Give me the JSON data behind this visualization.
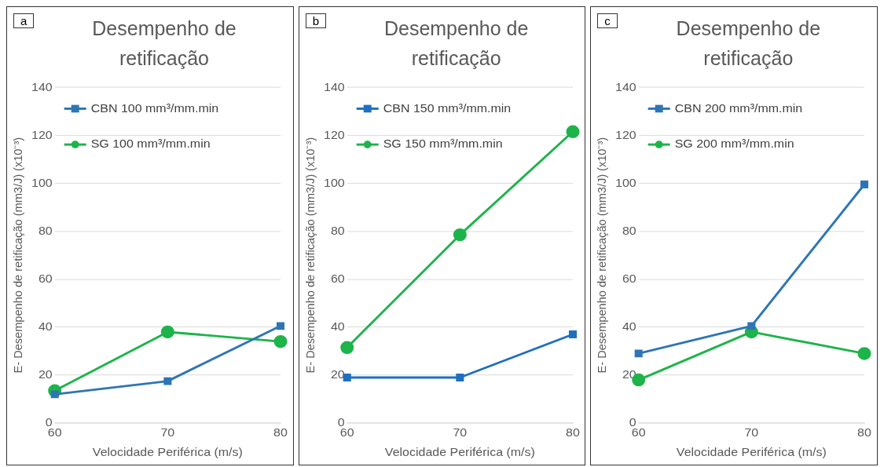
{
  "chart_data": [
    {
      "type": "line",
      "title": "Desempenho de retificação",
      "annotations": [
        "a"
      ],
      "xlabel": "Velocidade Periférica (m/s)",
      "ylabel": "E- Desempenho de retificação (mm3/J) (x10⁻³)",
      "x": [
        60,
        70,
        80
      ],
      "xlim": [
        60,
        80
      ],
      "xticks": [
        60,
        70,
        80
      ],
      "ylim": [
        0,
        140
      ],
      "yticks": [
        0,
        20,
        40,
        60,
        80,
        100,
        120,
        140
      ],
      "grid": "y",
      "legend": "top left",
      "series": [
        {
          "name": "CBN 100 mm³/mm.min",
          "color": "#2e75b6",
          "marker": "square",
          "values": [
            12,
            17.5,
            40.5
          ]
        },
        {
          "name": "SG 100 mm³/mm.min",
          "color": "#1db44a",
          "marker": "circle",
          "values": [
            13.5,
            38,
            34
          ]
        }
      ]
    },
    {
      "type": "line",
      "title": "Desempenho de retificação",
      "annotations": [
        "b"
      ],
      "xlabel": "Velocidade Periférica (m/s)",
      "ylabel": "E- Desempenho de retificação (mm3/J) (x10⁻³)",
      "x": [
        60,
        70,
        80
      ],
      "xlim": [
        60,
        80
      ],
      "xticks": [
        60,
        70,
        80
      ],
      "ylim": [
        0,
        140
      ],
      "yticks": [
        0,
        20,
        40,
        60,
        80,
        100,
        120,
        140
      ],
      "grid": "y",
      "legend": "top left",
      "series": [
        {
          "name": "CBN 150 mm³/mm.min",
          "color": "#1f6fc0",
          "marker": "square",
          "values": [
            19,
            19,
            37
          ]
        },
        {
          "name": "SG 150 mm³/mm.min",
          "color": "#1db44a",
          "marker": "circle",
          "values": [
            31.5,
            78.5,
            121.5
          ]
        }
      ]
    },
    {
      "type": "line",
      "title": "Desempenho de retificação",
      "annotations": [
        "c"
      ],
      "xlabel": "Velocidade Periférica (m/s)",
      "ylabel": "E- Desempenho de retificação (mm3/J) (x10⁻³)",
      "x": [
        60,
        70,
        80
      ],
      "xlim": [
        60,
        80
      ],
      "xticks": [
        60,
        70,
        80
      ],
      "ylim": [
        0,
        140
      ],
      "yticks": [
        0,
        20,
        40,
        60,
        80,
        100,
        120,
        140
      ],
      "grid": "y",
      "legend": "top left",
      "series": [
        {
          "name": "CBN 200 mm³/mm.min",
          "color": "#2e75b6",
          "marker": "square",
          "values": [
            29,
            40.5,
            99.5
          ]
        },
        {
          "name": "SG 200 mm³/mm.min",
          "color": "#1db44a",
          "marker": "circle",
          "values": [
            18,
            38,
            29
          ]
        }
      ]
    }
  ]
}
